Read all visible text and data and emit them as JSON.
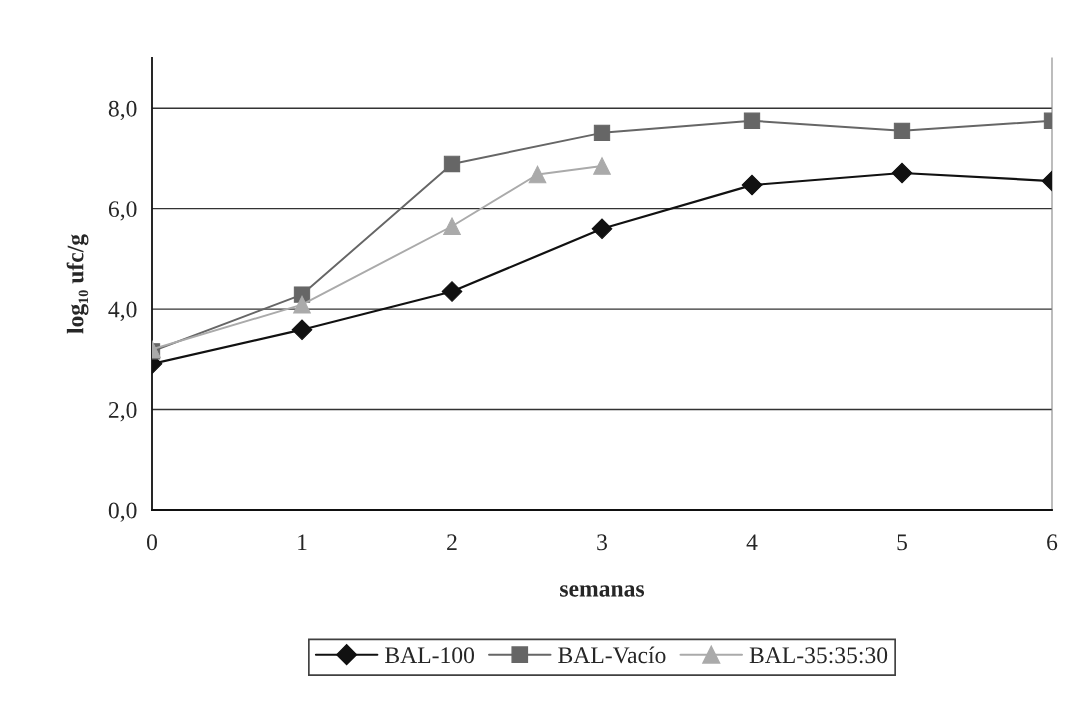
{
  "chart_data": {
    "type": "line",
    "xlabel": "semanas",
    "ylabel": "log₁₀ ufc/g",
    "xlim": [
      0,
      6
    ],
    "xticks": [
      0,
      1,
      2,
      3,
      4,
      5,
      6
    ],
    "ylim": [
      0,
      9
    ],
    "yticks": [
      {
        "value": 0,
        "label": "0,0"
      },
      {
        "value": 2,
        "label": "2,0"
      },
      {
        "value": 4,
        "label": "4,0"
      },
      {
        "value": 6,
        "label": "6,0"
      },
      {
        "value": 8,
        "label": "8,0"
      }
    ],
    "grid": "y",
    "legend": "bottom",
    "line_style": "solid",
    "series": [
      {
        "name": "BAL-100",
        "color": "#111111",
        "marker": "diamond",
        "x": [
          0,
          1,
          2,
          3,
          4,
          5,
          6
        ],
        "values": [
          2.91,
          3.59,
          4.35,
          5.6,
          6.47,
          6.71,
          6.55
        ]
      },
      {
        "name": "BAL-Vacío",
        "color": "#666666",
        "marker": "square",
        "x": [
          0,
          1,
          2,
          3,
          4,
          5,
          6
        ],
        "values": [
          3.16,
          4.29,
          6.89,
          7.51,
          7.75,
          7.55,
          7.75
        ]
      },
      {
        "name": "BAL-35:35:30",
        "color": "#aaaaaa",
        "marker": "triangle",
        "x": [
          0,
          1,
          2,
          2.57,
          3
        ],
        "values": [
          3.2,
          4.09,
          5.65,
          6.68,
          6.85
        ]
      }
    ]
  }
}
